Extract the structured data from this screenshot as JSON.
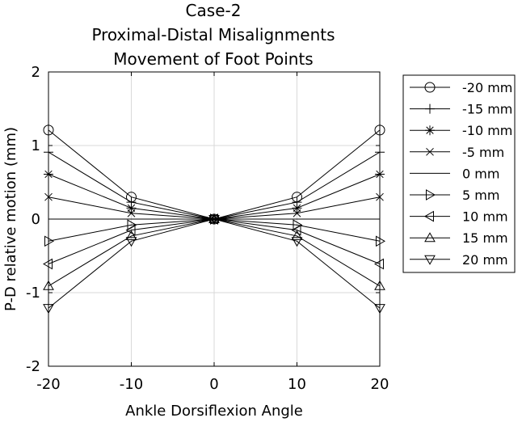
{
  "chart_data": {
    "type": "line",
    "title": [
      "Case-2",
      "Proximal-Distal Misalignments",
      "Movement of Foot Points"
    ],
    "xlabel": "Ankle Dorsiflexion Angle",
    "ylabel": "P-D relative motion (mm)",
    "xlim": [
      -20,
      20
    ],
    "ylim": [
      -2,
      2
    ],
    "xticks": [
      -20,
      -10,
      0,
      10,
      20
    ],
    "yticks": [
      -2,
      -1,
      0,
      1,
      2
    ],
    "xtick_labels": [
      "-20",
      "-10",
      "0",
      "10",
      "20"
    ],
    "ytick_labels": [
      "-2",
      "-1",
      "0",
      "1",
      "2"
    ],
    "grid": true,
    "legend_position": "outside-right",
    "x": [
      -20,
      -10,
      0,
      10,
      20
    ],
    "series": [
      {
        "name": "-20 mm",
        "marker": "circle",
        "values": [
          1.21,
          0.3,
          0,
          0.3,
          1.21
        ]
      },
      {
        "name": "-15 mm",
        "marker": "plus",
        "values": [
          0.91,
          0.23,
          0,
          0.23,
          0.91
        ]
      },
      {
        "name": "-10 mm",
        "marker": "asterisk",
        "values": [
          0.61,
          0.15,
          0,
          0.15,
          0.61
        ]
      },
      {
        "name": "-5 mm",
        "marker": "cross",
        "values": [
          0.3,
          0.08,
          0,
          0.08,
          0.3
        ]
      },
      {
        "name": "0 mm",
        "marker": "none",
        "values": [
          0,
          0,
          0,
          0,
          0
        ]
      },
      {
        "name": "5 mm",
        "marker": "triangle-right",
        "values": [
          -0.3,
          -0.08,
          0,
          -0.08,
          -0.3
        ]
      },
      {
        "name": "10 mm",
        "marker": "triangle-left",
        "values": [
          -0.61,
          -0.15,
          0,
          -0.15,
          -0.61
        ]
      },
      {
        "name": "15 mm",
        "marker": "triangle-up",
        "values": [
          -0.91,
          -0.23,
          0,
          -0.23,
          -0.91
        ]
      },
      {
        "name": "20 mm",
        "marker": "triangle-down",
        "values": [
          -1.21,
          -0.3,
          0,
          -0.3,
          -1.21
        ]
      }
    ]
  },
  "colors": {
    "line": "#000000",
    "grid": "#d9d9d9",
    "background": "#ffffff"
  }
}
